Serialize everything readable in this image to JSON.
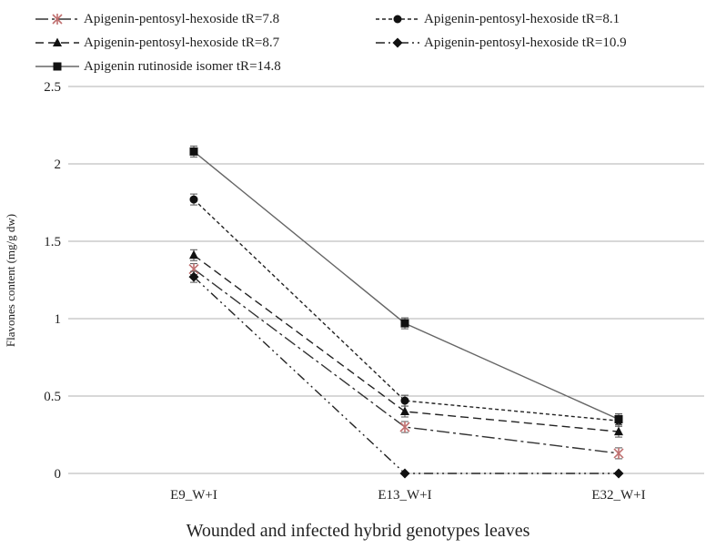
{
  "chart_data": {
    "type": "line",
    "categories": [
      "E9_W+I",
      "E13_W+I",
      "E32_W+I"
    ],
    "xlabel": "Wounded and infected hybrid genotypes leaves",
    "ylabel": "Flavones content (mg/g dw)",
    "ylim": [
      0,
      2.5
    ],
    "yticks": [
      "0",
      "0.5",
      "1",
      "1.5",
      "2",
      "2.5"
    ],
    "grid": "horizontal",
    "legend_position": "top",
    "series": [
      {
        "name": "Apigenin-pentosyl-hexoside tR=7.8",
        "values": [
          1.32,
          0.3,
          0.13
        ],
        "marker": "asterisk",
        "dash": "long-dash-dot",
        "color": "#333333",
        "marker_color": "#c07070"
      },
      {
        "name": "Apigenin-pentosyl-hexoside tR=8.1",
        "values": [
          1.77,
          0.47,
          0.34
        ],
        "marker": "circle",
        "dash": "short-dash",
        "color": "#222222",
        "marker_color": "#111111"
      },
      {
        "name": "Apigenin-pentosyl-hexoside tR=8.7",
        "values": [
          1.41,
          0.4,
          0.27
        ],
        "marker": "triangle",
        "dash": "dash",
        "color": "#222222",
        "marker_color": "#111111"
      },
      {
        "name": "Apigenin-pentosyl-hexoside tR=10.9",
        "values": [
          1.27,
          0.0,
          0.0
        ],
        "marker": "diamond",
        "dash": "dash-dot-dot",
        "color": "#222222",
        "marker_color": "#111111"
      },
      {
        "name": "Apigenin rutinoside isomer tR=14.8",
        "values": [
          2.08,
          0.97,
          0.35
        ],
        "marker": "square",
        "dash": "solid",
        "color": "#666666",
        "marker_color": "#111111"
      }
    ]
  }
}
